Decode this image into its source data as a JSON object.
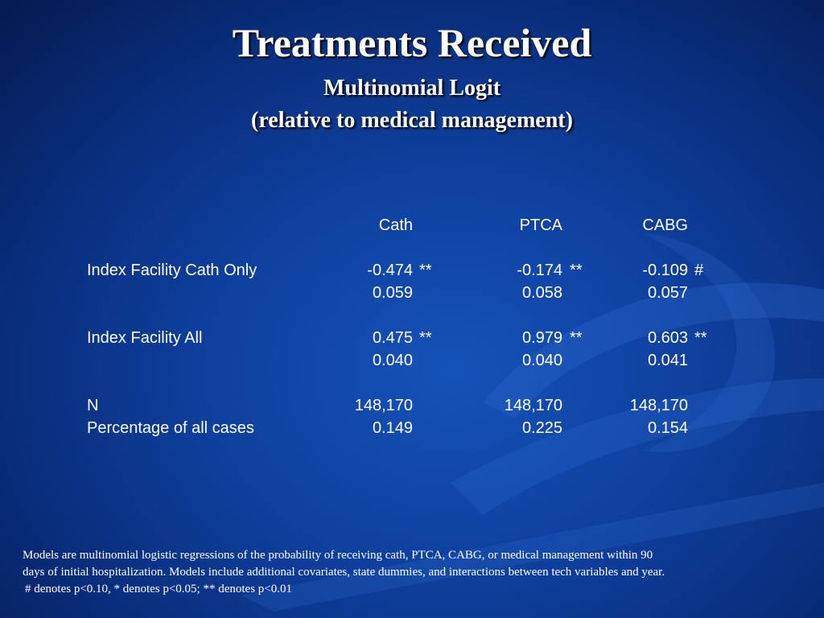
{
  "title": "Treatments Received",
  "subtitle_line1": "Multinomial Logit",
  "subtitle_line2": "(relative to medical management)",
  "table": {
    "columns": [
      "Cath",
      "PTCA",
      "CABG"
    ],
    "rows": [
      {
        "label": "Index Facility Cath Only",
        "coef": [
          "-0.474",
          "-0.174",
          "-0.109"
        ],
        "sig": [
          "**",
          "**",
          "#"
        ],
        "se": [
          "0.059",
          "0.058",
          "0.057"
        ]
      },
      {
        "label": "Index Facility All",
        "coef": [
          "0.475",
          "0.979",
          "0.603"
        ],
        "sig": [
          "**",
          "**",
          "**"
        ],
        "se": [
          "0.040",
          "0.040",
          "0.041"
        ]
      }
    ],
    "n_label": "N",
    "n_values": [
      "148,170",
      "148,170",
      "148,170"
    ],
    "pct_label": "Percentage of all cases",
    "pct_values": [
      "0.149",
      "0.225",
      "0.154"
    ]
  },
  "notes": {
    "line1": "Models are multinomial logistic regressions of the probability of receiving cath, PTCA, CABG, or medical management within 90",
    "line2": "days of initial hospitalization.  Models include additional covariates, state dummies, and interactions between tech variables and year.",
    "line3": "# denotes p<0.10, * denotes p<0.05; ** denotes p<0.01"
  },
  "colors": {
    "background": "#0e3f9c",
    "text": "#ffffff",
    "swoosh": "#1f5cc4"
  }
}
